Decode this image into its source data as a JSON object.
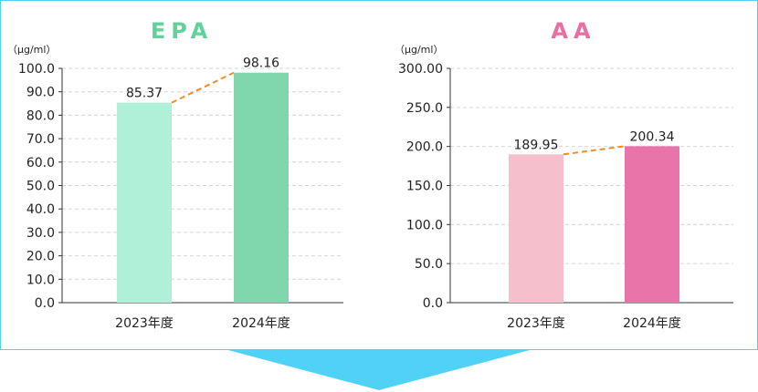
{
  "colors": {
    "frame_border": "#4fd2f6",
    "arrow": "#4fd2f6",
    "epa_title": "#5fd39a",
    "aa_title": "#e86fa3",
    "epa_bar_2023": "#b0f0d8",
    "epa_bar_2024": "#80d6ad",
    "aa_bar_2023": "#f5c0cc",
    "aa_bar_2024": "#e874aa",
    "trend_line": "#f28c28",
    "grid": "#d6d6d6",
    "axis": "#333333",
    "text": "#222222"
  },
  "chart_data": [
    {
      "type": "bar",
      "title": "EPA",
      "unit_label": "（μg/ml）",
      "categories": [
        "2023年度",
        "2024年度"
      ],
      "values": [
        85.37,
        98.16
      ],
      "value_labels": [
        "85.37",
        "98.16"
      ],
      "ylim": [
        0,
        100
      ],
      "yticks": [
        0,
        10,
        20,
        30,
        40,
        50,
        60,
        70,
        80,
        90,
        100
      ],
      "ytick_labels": [
        "0.0",
        "10.0",
        "20.0",
        "30.0",
        "40.0",
        "50.0",
        "60.0",
        "70.0",
        "80.0",
        "90.0",
        "100.0"
      ],
      "grid": true,
      "trend_line": "dashed"
    },
    {
      "type": "bar",
      "title": "AA",
      "unit_label": "（μg/ml）",
      "categories": [
        "2023年度",
        "2024年度"
      ],
      "values": [
        189.95,
        200.34
      ],
      "value_labels": [
        "189.95",
        "200.34"
      ],
      "ylim": [
        0,
        300
      ],
      "yticks": [
        0,
        50,
        100,
        150,
        200,
        250,
        300
      ],
      "ytick_labels": [
        "0.0",
        "50.0",
        "100.0",
        "150.0",
        "200.0",
        "250.0",
        "300.00"
      ],
      "grid": true,
      "trend_line": "dashed"
    }
  ]
}
